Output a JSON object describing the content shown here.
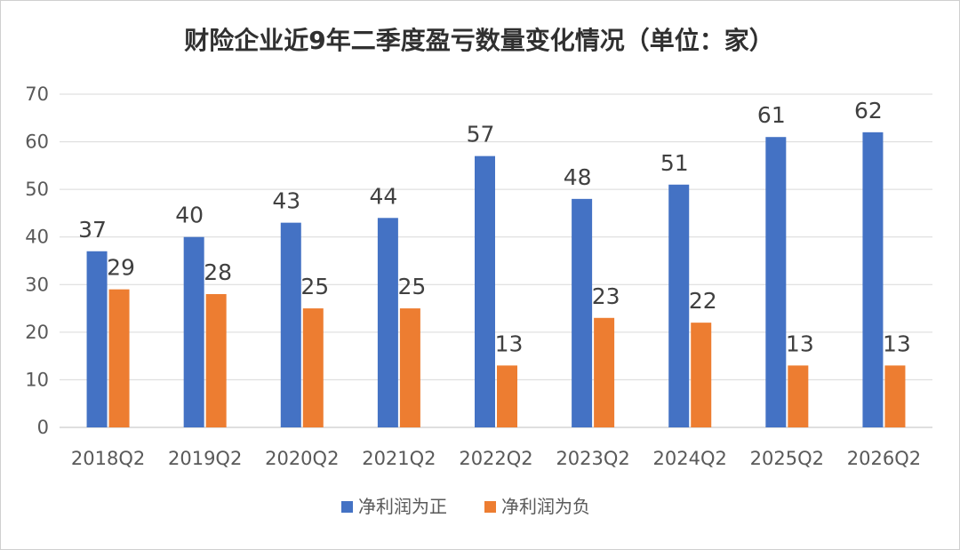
{
  "chart_data": {
    "type": "bar",
    "title": "财险企业近9年二季度盈亏数量变化情况（单位：家）",
    "categories": [
      "2018Q2",
      "2019Q2",
      "2020Q2",
      "2021Q2",
      "2022Q2",
      "2023Q2",
      "2024Q2",
      "2025Q2",
      "2026Q2"
    ],
    "series": [
      {
        "name": "净利润为正",
        "color": "#4472C4",
        "values": [
          37,
          40,
          43,
          44,
          57,
          48,
          51,
          61,
          62
        ]
      },
      {
        "name": "净利润为负",
        "color": "#ED7D31",
        "values": [
          29,
          28,
          25,
          25,
          13,
          23,
          22,
          13,
          13
        ]
      }
    ],
    "ylim": [
      0,
      70
    ],
    "yticks": [
      0,
      10,
      20,
      30,
      40,
      50,
      60,
      70
    ],
    "grid": true,
    "legend": "bottom",
    "xlabel": "",
    "ylabel": ""
  }
}
